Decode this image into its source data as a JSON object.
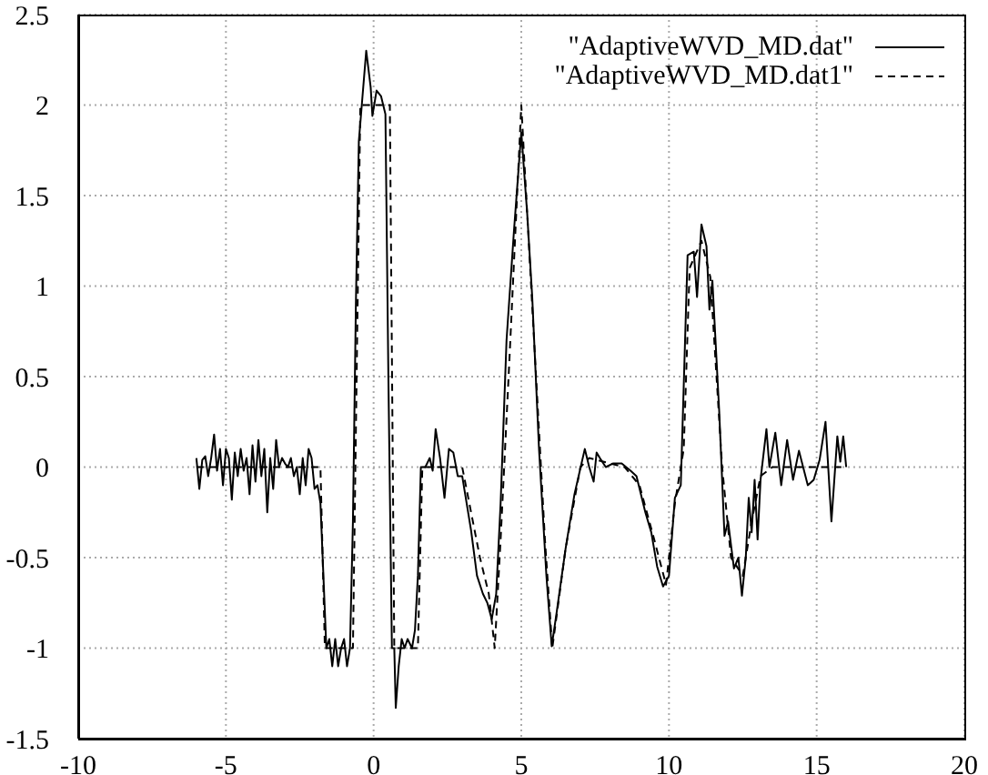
{
  "chart_data": {
    "type": "line",
    "xlim": [
      -10,
      20
    ],
    "xticks": [
      -10,
      -5,
      0,
      5,
      10,
      15,
      20
    ],
    "ylim": [
      -1.5,
      2.5
    ],
    "yticks": [
      -1.5,
      -1,
      -0.5,
      0,
      0.5,
      1,
      1.5,
      2,
      2.5
    ],
    "grid": true,
    "legend": "top right",
    "marker": "none",
    "series": [
      {
        "name": "\"AdaptiveWVD_MD.dat\"",
        "color": "#000000",
        "line_style": "solid",
        "x": [
          -6.0,
          -5.9,
          -5.8,
          -5.7,
          -5.6,
          -5.5,
          -5.4,
          -5.3,
          -5.2,
          -5.1,
          -5.0,
          -4.9,
          -4.8,
          -4.7,
          -4.6,
          -4.5,
          -4.4,
          -4.3,
          -4.2,
          -4.1,
          -4.0,
          -3.9,
          -3.8,
          -3.7,
          -3.6,
          -3.5,
          -3.4,
          -3.3,
          -3.2,
          -3.1,
          -3.0,
          -2.9,
          -2.8,
          -2.7,
          -2.6,
          -2.5,
          -2.4,
          -2.3,
          -2.2,
          -2.1,
          -2.0,
          -1.9,
          -1.8,
          -1.7,
          -1.6,
          -1.5,
          -1.4,
          -1.3,
          -1.2,
          -1.1,
          -1.0,
          -0.9,
          -0.8,
          -0.7,
          -0.6,
          -0.5,
          -0.4,
          -0.25,
          -0.1,
          -0.04,
          0.1,
          0.25,
          0.4,
          0.5,
          0.62,
          0.7,
          0.75,
          0.85,
          0.95,
          1.05,
          1.15,
          1.3,
          1.4,
          1.5,
          1.6,
          1.75,
          1.9,
          2.0,
          2.1,
          2.25,
          2.4,
          2.55,
          2.7,
          2.85,
          3.0,
          3.1,
          3.3,
          3.5,
          3.7,
          3.85,
          4.0,
          4.15,
          4.3,
          4.5,
          4.75,
          5.0,
          5.2,
          5.37,
          5.6,
          5.85,
          6.03,
          6.2,
          6.5,
          6.8,
          7.15,
          7.3,
          7.45,
          7.55,
          7.66,
          7.86,
          8.1,
          8.4,
          8.7,
          8.9,
          9.2,
          9.4,
          9.6,
          9.8,
          10.0,
          10.2,
          10.4,
          10.63,
          10.84,
          10.95,
          11.1,
          11.27,
          11.37,
          11.47,
          11.7,
          11.88,
          12.0,
          12.2,
          12.35,
          12.47,
          12.6,
          12.7,
          12.8,
          12.9,
          13.0,
          13.1,
          13.3,
          13.4,
          13.6,
          13.8,
          14.0,
          14.2,
          14.4,
          14.7,
          14.9,
          15.1,
          15.3,
          15.5,
          15.7,
          15.8,
          15.9,
          16.0
        ],
        "values": [
          0.05,
          -0.12,
          0.04,
          0.06,
          -0.05,
          0.05,
          0.18,
          -0.02,
          0.1,
          -0.1,
          0.1,
          0.05,
          -0.18,
          0.08,
          -0.05,
          0.1,
          -0.02,
          0.05,
          -0.15,
          0.12,
          -0.08,
          0.15,
          -0.05,
          0.1,
          -0.25,
          0.05,
          -0.12,
          0.15,
          0.0,
          0.05,
          0.02,
          0.0,
          0.05,
          -0.05,
          0.0,
          -0.15,
          0.05,
          -0.1,
          0.1,
          0.05,
          -0.12,
          -0.1,
          -0.2,
          -0.6,
          -1.0,
          -0.95,
          -1.1,
          -0.95,
          -1.1,
          -1.0,
          -0.95,
          -1.1,
          -1.0,
          -0.3,
          0.9,
          1.8,
          2.0,
          2.3,
          2.1,
          1.94,
          2.08,
          2.05,
          1.95,
          0.5,
          -1.0,
          -1.0,
          -1.33,
          -1.1,
          -0.95,
          -1.0,
          -0.95,
          -1.0,
          -0.9,
          -0.6,
          0.0,
          0.0,
          0.05,
          -0.02,
          0.21,
          0.05,
          -0.17,
          0.1,
          0.08,
          -0.05,
          -0.05,
          -0.15,
          -0.35,
          -0.6,
          -0.7,
          -0.75,
          -0.84,
          -0.7,
          -0.2,
          0.7,
          1.3,
          1.85,
          1.4,
          0.94,
          0.1,
          -0.6,
          -0.99,
          -0.8,
          -0.45,
          -0.15,
          0.1,
          0.0,
          -0.08,
          0.08,
          0.05,
          0.0,
          0.02,
          0.02,
          -0.02,
          -0.05,
          -0.25,
          -0.36,
          -0.55,
          -0.66,
          -0.6,
          -0.17,
          -0.1,
          1.17,
          1.19,
          0.94,
          1.34,
          1.22,
          0.87,
          1.03,
          0.31,
          -0.38,
          -0.3,
          -0.56,
          -0.5,
          -0.71,
          -0.5,
          -0.17,
          -0.36,
          -0.07,
          -0.4,
          -0.07,
          0.21,
          0.0,
          0.19,
          -0.1,
          0.15,
          -0.07,
          0.09,
          -0.1,
          -0.07,
          0.04,
          0.25,
          -0.3,
          0.17,
          0.03,
          0.17,
          0.0
        ]
      },
      {
        "name": "\"AdaptiveWVD_MD.dat1\"",
        "color": "#000000",
        "line_style": "dashed",
        "x": [
          -6,
          -1.8,
          -1.65,
          -0.7,
          -0.45,
          0.55,
          0.7,
          1.5,
          1.65,
          3.0,
          3.3,
          3.6,
          3.9,
          4.1,
          4.3,
          4.6,
          5.0,
          5.4,
          5.8,
          6.05,
          6.5,
          7.0,
          7.3,
          8.5,
          9.0,
          9.5,
          9.9,
          10.2,
          10.5,
          10.7,
          11.1,
          11.4,
          11.8,
          12.1,
          12.5,
          12.8,
          13.1,
          13.5,
          16
        ],
        "values": [
          0,
          0,
          -1,
          -1,
          2,
          2,
          -1,
          -1,
          0,
          0,
          -0.25,
          -0.5,
          -0.7,
          -1.0,
          -0.4,
          0.6,
          2.0,
          0.8,
          -0.4,
          -1.0,
          -0.45,
          0.0,
          0.05,
          0.0,
          -0.1,
          -0.4,
          -0.65,
          -0.2,
          0.1,
          1.1,
          1.25,
          1.05,
          0.0,
          -0.5,
          -0.6,
          -0.3,
          -0.05,
          0.0,
          0
        ]
      }
    ]
  }
}
